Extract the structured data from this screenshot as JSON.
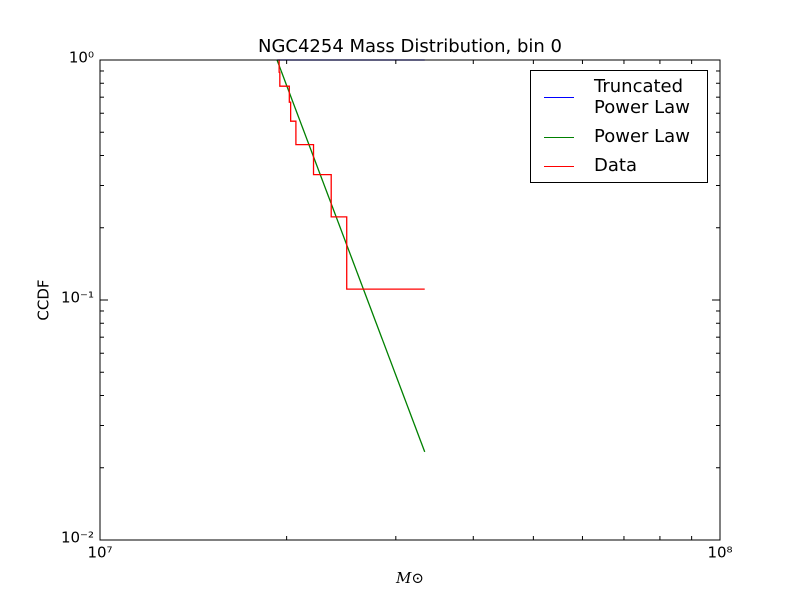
{
  "chart_data": {
    "type": "line",
    "title": "NGC4254 Mass Distribution, bin 0",
    "xlabel": "M⊙",
    "ylabel": "CCDF",
    "xscale": "log",
    "yscale": "log",
    "xlim": [
      10000000,
      100000000
    ],
    "ylim": [
      0.01,
      1
    ],
    "xticks": [
      {
        "value": 10000000,
        "label": "10⁷"
      },
      {
        "value": 100000000,
        "label": "10⁸"
      }
    ],
    "yticks": [
      {
        "value": 0.01,
        "label": "10⁻²"
      },
      {
        "value": 0.1,
        "label": "10⁻¹"
      },
      {
        "value": 1,
        "label": "10⁰"
      }
    ],
    "xminorticks": [
      20000000,
      30000000,
      40000000,
      50000000,
      60000000,
      70000000,
      80000000,
      90000000
    ],
    "yminorticks": [
      0.02,
      0.03,
      0.04,
      0.05,
      0.06,
      0.07,
      0.08,
      0.09,
      0.2,
      0.3,
      0.4,
      0.5,
      0.6,
      0.7,
      0.8,
      0.9
    ],
    "legend": "upper right",
    "series": [
      {
        "name": "Truncated\nPower Law",
        "color": "#0000ff",
        "x": [
          19300000,
          33400000
        ],
        "values": [
          1,
          1
        ]
      },
      {
        "name": "Power Law",
        "color": "#008000",
        "x": [
          19300000,
          33400000
        ],
        "values": [
          1,
          0.0233
        ]
      },
      {
        "name": "Data",
        "color": "#ff0000",
        "drawstyle": "steps-post",
        "x": [
          19400000,
          19450000,
          19500000,
          20200000,
          20300000,
          20700000,
          22100000,
          23600000,
          25000000,
          33400000
        ],
        "values": [
          1,
          0.889,
          0.778,
          0.667,
          0.556,
          0.444,
          0.333,
          0.222,
          0.111,
          0.111
        ]
      }
    ]
  }
}
